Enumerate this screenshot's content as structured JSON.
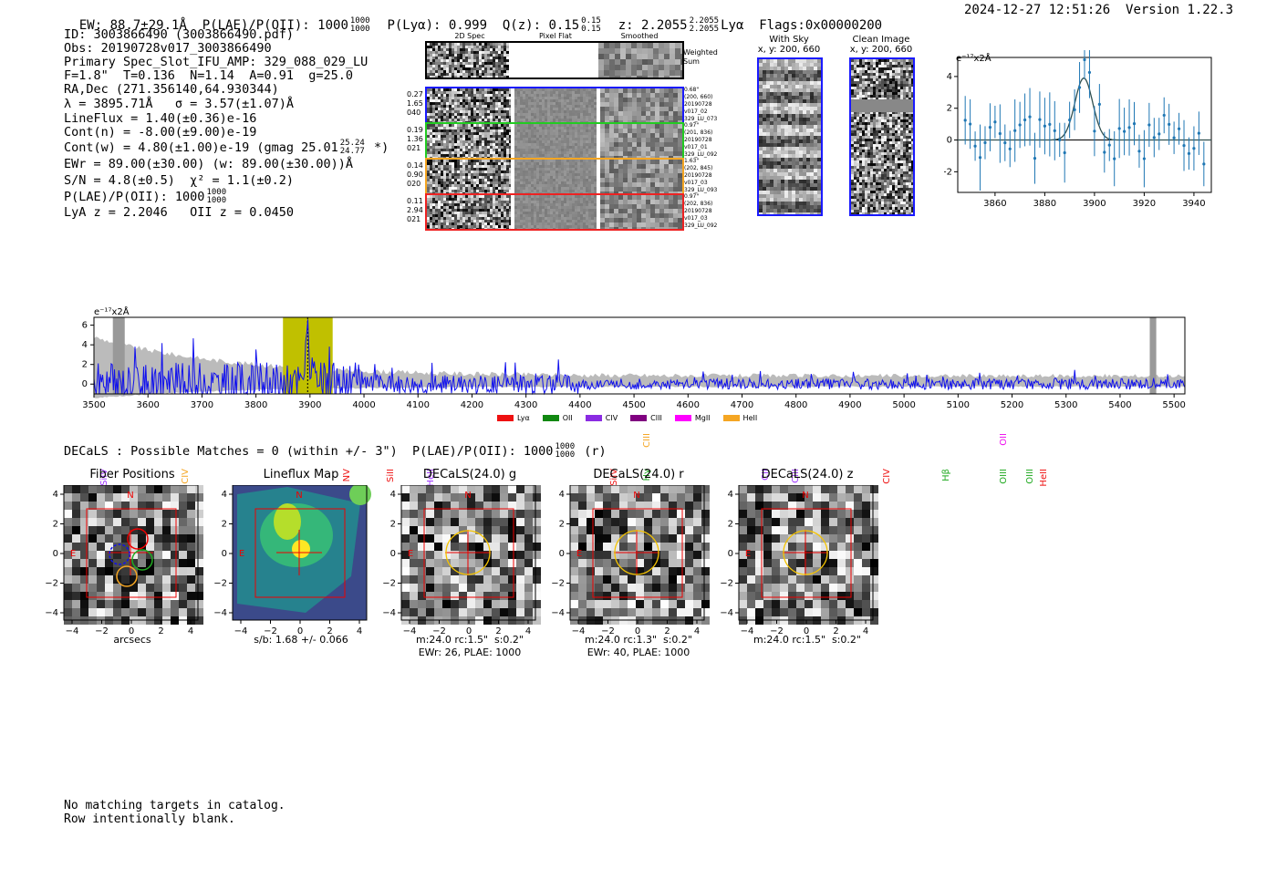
{
  "header": {
    "ew": "EW: 88.7±29.1Å",
    "plae_label": "P(LAE)/P(OII): 1000",
    "plae_hi": "1000",
    "plae_lo": "1000",
    "plya": "P(Lyα): 0.999",
    "qz_label": "Q(z): 0.15",
    "qz_hi": "0.15",
    "qz_lo": "0.15",
    "z_label": "z: 2.2055",
    "z_hi": "2.2055",
    "z_lo": "2.2055",
    "z_line": "Lyα",
    "flags": "Flags:0x00000200",
    "timestamp": "2024-12-27 12:51:26",
    "version": "Version 1.22.3"
  },
  "info": {
    "id": "ID: 3003866490 (3003866490.pdf)",
    "obs": "Obs: 20190728v017_3003866490",
    "primary": "Primary Spec_Slot_IFU_AMP: 329_088_029_LU",
    "f_line": "F=1.8\"  T=0.136  N=1.14  A=0.91  g=25.0",
    "radec": "RA,Dec (271.356140,64.930344)",
    "lambda": "λ = 3895.71Å   σ = 3.57(±1.07)Å",
    "lineflux": "LineFlux = 1.40(±0.36)e-16",
    "contn": "Cont(n) = -8.00(±9.00)e-19",
    "contw": "Cont(w) = 4.80(±1.00)e-19 (gmag 25.01",
    "contw_hi": "25.24",
    "contw_lo": "24.77",
    "contw_end": "*)",
    "ewr": "EWr = 89.00(±30.00) (w: 89.00(±30.00))Å",
    "sn": "S/N = 4.8(±0.5)  χ² = 1.1(±0.2)",
    "plae": "P(LAE)/P(OII): 1000",
    "plae_hi": "1000",
    "plae_lo": "1000",
    "lya_z": "LyA z = 2.2046   OII z = 0.0450"
  },
  "cutouts": {
    "col_titles": [
      "2D Spec",
      "Pixel Flat",
      "Smoothed"
    ],
    "weighted_sum": "Weighted Sum",
    "rows": [
      {
        "left": [
          "0.27",
          "1.65",
          "040"
        ],
        "right": [
          "0.68\"",
          "(200, 660)",
          "20190728",
          "v017_02",
          "329_LU_073"
        ],
        "color": "#1a1aff"
      },
      {
        "left": [
          "0.19",
          "1.36",
          "021"
        ],
        "right": [
          "0.97\"",
          "(201, 836)",
          "20190728",
          "v017_01",
          "329_LU_092"
        ],
        "color": "#22cc22"
      },
      {
        "left": [
          "0.14",
          "0.90",
          "020"
        ],
        "right": [
          "1.63\"",
          "(202, 845)",
          "20190728",
          "v017_03",
          "329_LU_093"
        ],
        "color": "#f5a623"
      },
      {
        "left": [
          "0.11",
          "2.94",
          "021"
        ],
        "right": [
          "0.97\"",
          "(202, 836)",
          "20190728",
          "v017_03",
          "329_LU_092"
        ],
        "color": "#ee2222"
      }
    ],
    "with_sky_title": "With Sky",
    "with_sky_sub": "x, y: 200, 660",
    "clean_title": "Clean Image",
    "clean_sub": "x, y: 200, 660"
  },
  "zoom_plot": {
    "ylabel": "e⁻¹⁷x2Å",
    "xticks": [
      "3860",
      "3880",
      "3900",
      "3920",
      "3940"
    ],
    "yticks": [
      "4",
      "2",
      "0",
      "-2"
    ]
  },
  "spectrum": {
    "ylabel": "e⁻¹⁷x2Å",
    "xticks": [
      "3500",
      "3600",
      "3700",
      "3800",
      "3900",
      "4000",
      "4100",
      "4200",
      "4300",
      "4400",
      "4500",
      "4600",
      "4700",
      "4800",
      "4900",
      "5000",
      "5100",
      "5200",
      "5300",
      "5400",
      "5500"
    ],
    "yticks": [
      "6",
      "4",
      "2",
      "0"
    ],
    "lines": [
      {
        "label": "SiIV",
        "color": "#9b30ff",
        "wave": 3520,
        "tier": 1
      },
      {
        "label": "CIV",
        "color": "#f5a623",
        "wave": 3670,
        "tier": 1
      },
      {
        "label": "NV",
        "color": "#ee1111",
        "wave": 3970,
        "tier": 1
      },
      {
        "label": "SiII",
        "color": "#ee1111",
        "wave": 4050,
        "tier": 1
      },
      {
        "label": "HeII",
        "color": "#9b30ff",
        "wave": 4125,
        "tier": 1
      },
      {
        "label": "SiIV",
        "color": "#ee1111",
        "wave": 4465,
        "tier": 1
      },
      {
        "label": "CIII",
        "color": "#f5a623",
        "wave": 4525,
        "tier": 0
      },
      {
        "label": "Hγ",
        "color": "#22aa22",
        "wave": 4525,
        "tier": 1
      },
      {
        "label": "CII",
        "color": "#9b30ff",
        "wave": 4745,
        "tier": 1
      },
      {
        "label": "CIII",
        "color": "#9b30ff",
        "wave": 4800,
        "tier": 1
      },
      {
        "label": "CIV",
        "color": "#ee1111",
        "wave": 4970,
        "tier": 1
      },
      {
        "label": "Hβ",
        "color": "#22aa22",
        "wave": 5080,
        "tier": 1
      },
      {
        "label": "OII",
        "color": "#ee11ee",
        "wave": 5185,
        "tier": 0
      },
      {
        "label": "OIII",
        "color": "#22aa22",
        "wave": 5185,
        "tier": 1
      },
      {
        "label": "OIII",
        "color": "#22aa22",
        "wave": 5235,
        "tier": 1
      },
      {
        "label": "HeII",
        "color": "#ee1111",
        "wave": 5260,
        "tier": 1
      }
    ],
    "legend": [
      {
        "label": "Lyα",
        "color": "#ee1111"
      },
      {
        "label": "OII",
        "color": "#118811"
      },
      {
        "label": "CIV",
        "color": "#8a2be2"
      },
      {
        "label": "CIII",
        "color": "#800080"
      },
      {
        "label": "MgII",
        "color": "#ff00ff"
      },
      {
        "label": "HeII",
        "color": "#f5a623"
      }
    ]
  },
  "decals": {
    "title": "DECaLS : Possible Matches = 0 (within +/- 3\")  P(LAE)/P(OII): 1000",
    "plae_hi": "1000",
    "plae_lo": "1000",
    "band": "(r)",
    "panels": [
      {
        "title": "Fiber Positions",
        "sub1": "arcsecs",
        "sub2": ""
      },
      {
        "title": "Lineflux Map",
        "sub1": "s/b: 1.68 +/- 0.066",
        "sub2": ""
      },
      {
        "title": "DECaLS(24.0) g",
        "sub1": "m:24.0 rc:1.5\"  s:0.2\"",
        "sub2": "EWr: 26, PLAE: 1000"
      },
      {
        "title": "DECaLS(24.0) r",
        "sub1": "m:24.0 rc:1.3\"  s:0.2\"",
        "sub2": "EWr: 40, PLAE: 1000"
      },
      {
        "title": "DECaLS(24.0) z",
        "sub1": "m:24.0 rc:1.5\"  s:0.2\"",
        "sub2": ""
      }
    ],
    "axis_ticks": [
      "−4",
      "−2",
      "0",
      "2",
      "4"
    ],
    "y_ticks": [
      "4",
      "2",
      "0",
      "−2",
      "−4"
    ],
    "compass_n": "N",
    "compass_e": "E"
  },
  "footer": {
    "line1": "No matching targets in catalog.",
    "line2": "Row intentionally blank."
  }
}
